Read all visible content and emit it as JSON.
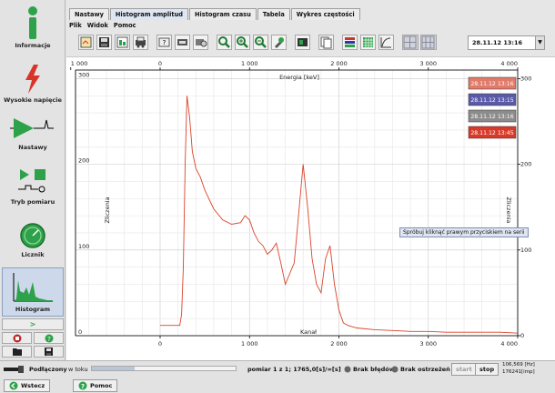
{
  "sidebar": {
    "items": [
      {
        "label": "Informacje"
      },
      {
        "label": "Wysokie napięcie"
      },
      {
        "label": "Nastawy"
      },
      {
        "label": "Tryb pomiaru"
      },
      {
        "label": "Licznik"
      },
      {
        "label": "Histogram"
      }
    ],
    "next_label": ">"
  },
  "tabs": [
    {
      "label": "Nastawy"
    },
    {
      "label": "Histogram amplitud"
    },
    {
      "label": "Histogram czasu"
    },
    {
      "label": "Tabela"
    },
    {
      "label": "Wykres częstości"
    }
  ],
  "menu": [
    {
      "label": "Plik"
    },
    {
      "label": "Widok"
    },
    {
      "label": "Pomoc"
    }
  ],
  "toolbar": {
    "date": "28.11.12 13:16",
    "icons": [
      "open-icon",
      "save-icon",
      "export-icon",
      "print-icon",
      "report-icon",
      "settings-icon",
      "camera-icon",
      "zoom-icon",
      "zoom-in-icon",
      "zoom-out-icon",
      "tools-icon",
      "calibrate-icon",
      "copy-icon",
      "colors-icon",
      "grid-icon",
      "log-scale-icon",
      "layout-1-icon",
      "layout-2-icon"
    ]
  },
  "chart_data": {
    "type": "line",
    "top_axis_label": "Energia [keV]",
    "bottom_axis_label": "Kanał",
    "ylabel_left": "Zliczenia",
    "ylabel_right": "Zliczenia",
    "top_ticks": [
      "1 000",
      "0",
      "1 000",
      "2 000",
      "3 000",
      "4 000"
    ],
    "bottom_ticks": [
      "0",
      "1 000",
      "2 000",
      "3 000",
      "4 000"
    ],
    "y_ticks": [
      "0",
      "100",
      "200",
      "300"
    ],
    "ylim": [
      0,
      310
    ],
    "xlim": [
      -1000,
      4000
    ],
    "legend": [
      {
        "label": "28.11.12 13:16",
        "color": "#e07a6a"
      },
      {
        "label": "28.11.12 13:15",
        "color": "#5a5aa8"
      },
      {
        "label": "28.11.12 13:16",
        "color": "#8c8c8c"
      },
      {
        "label": "28.11.12 13:45",
        "color": "#d83a2a"
      }
    ],
    "series_color": "#d9442a",
    "series": [
      {
        "x": [
          0,
          220,
          240,
          260,
          280,
          300,
          330,
          360,
          400,
          450,
          500,
          600,
          700,
          800,
          900,
          950,
          1000,
          1050,
          1100,
          1150,
          1200,
          1250,
          1300,
          1350,
          1400,
          1500,
          1600,
          1650,
          1700,
          1750,
          1800,
          1850,
          1900,
          1950,
          2000,
          2050,
          2100,
          2200,
          2400,
          2600,
          2800,
          3000,
          3200,
          3400,
          3600,
          3800,
          4000
        ],
        "y": [
          12,
          12,
          25,
          80,
          200,
          280,
          255,
          215,
          195,
          185,
          170,
          148,
          135,
          130,
          132,
          140,
          135,
          120,
          110,
          105,
          95,
          100,
          108,
          85,
          60,
          85,
          200,
          150,
          90,
          60,
          50,
          90,
          105,
          60,
          30,
          15,
          12,
          9,
          7,
          6,
          5,
          5,
          4,
          4,
          4,
          4,
          3
        ]
      }
    ]
  },
  "tooltip": "Spróbuj kliknąć prawym przyciskiem na serii",
  "status": {
    "conn_label": "Podłączony",
    "mode": "w toku",
    "info": "pomiar 1 z 1; 1765,0[s]/∞[s]",
    "no_errors": "Brak błędów",
    "no_warnings": "Brak ostrzeżeń",
    "start": "start",
    "stop": "stop",
    "rate": "106,569 [Hz]",
    "counts": "176241[imp]"
  },
  "bottom": {
    "back": "Wstecz",
    "help": "Pomoc"
  }
}
